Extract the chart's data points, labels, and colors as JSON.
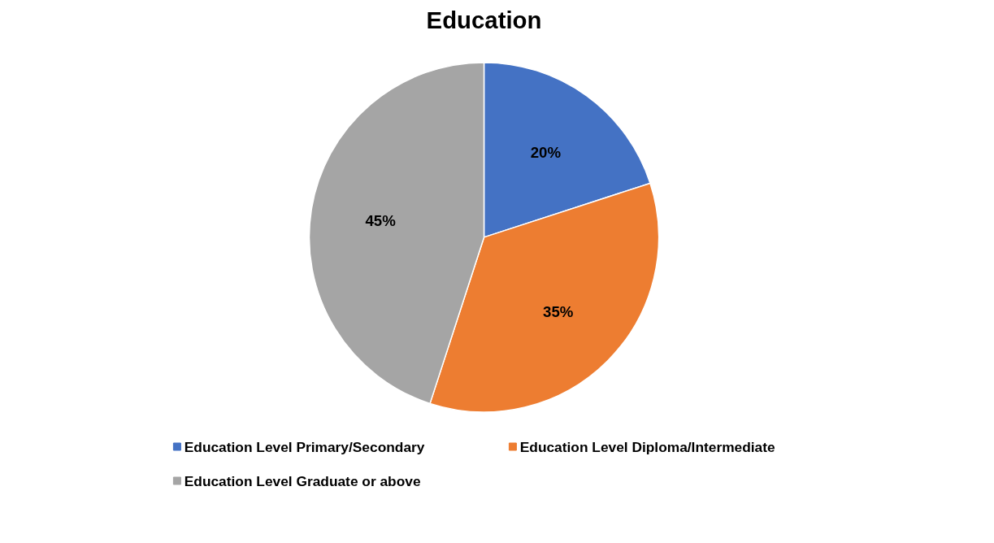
{
  "chart_data": {
    "type": "pie",
    "title": "Education",
    "categories": [
      "Education Level Primary/Secondary",
      "Education Level Diploma/Intermediate",
      "Education Level Graduate or above"
    ],
    "values": [
      20,
      35,
      45
    ],
    "colors": [
      "#4472c4",
      "#ed7d31",
      "#a5a5a5"
    ],
    "value_labels": [
      "20%",
      "35%",
      "45%"
    ],
    "legend": "bottom"
  }
}
